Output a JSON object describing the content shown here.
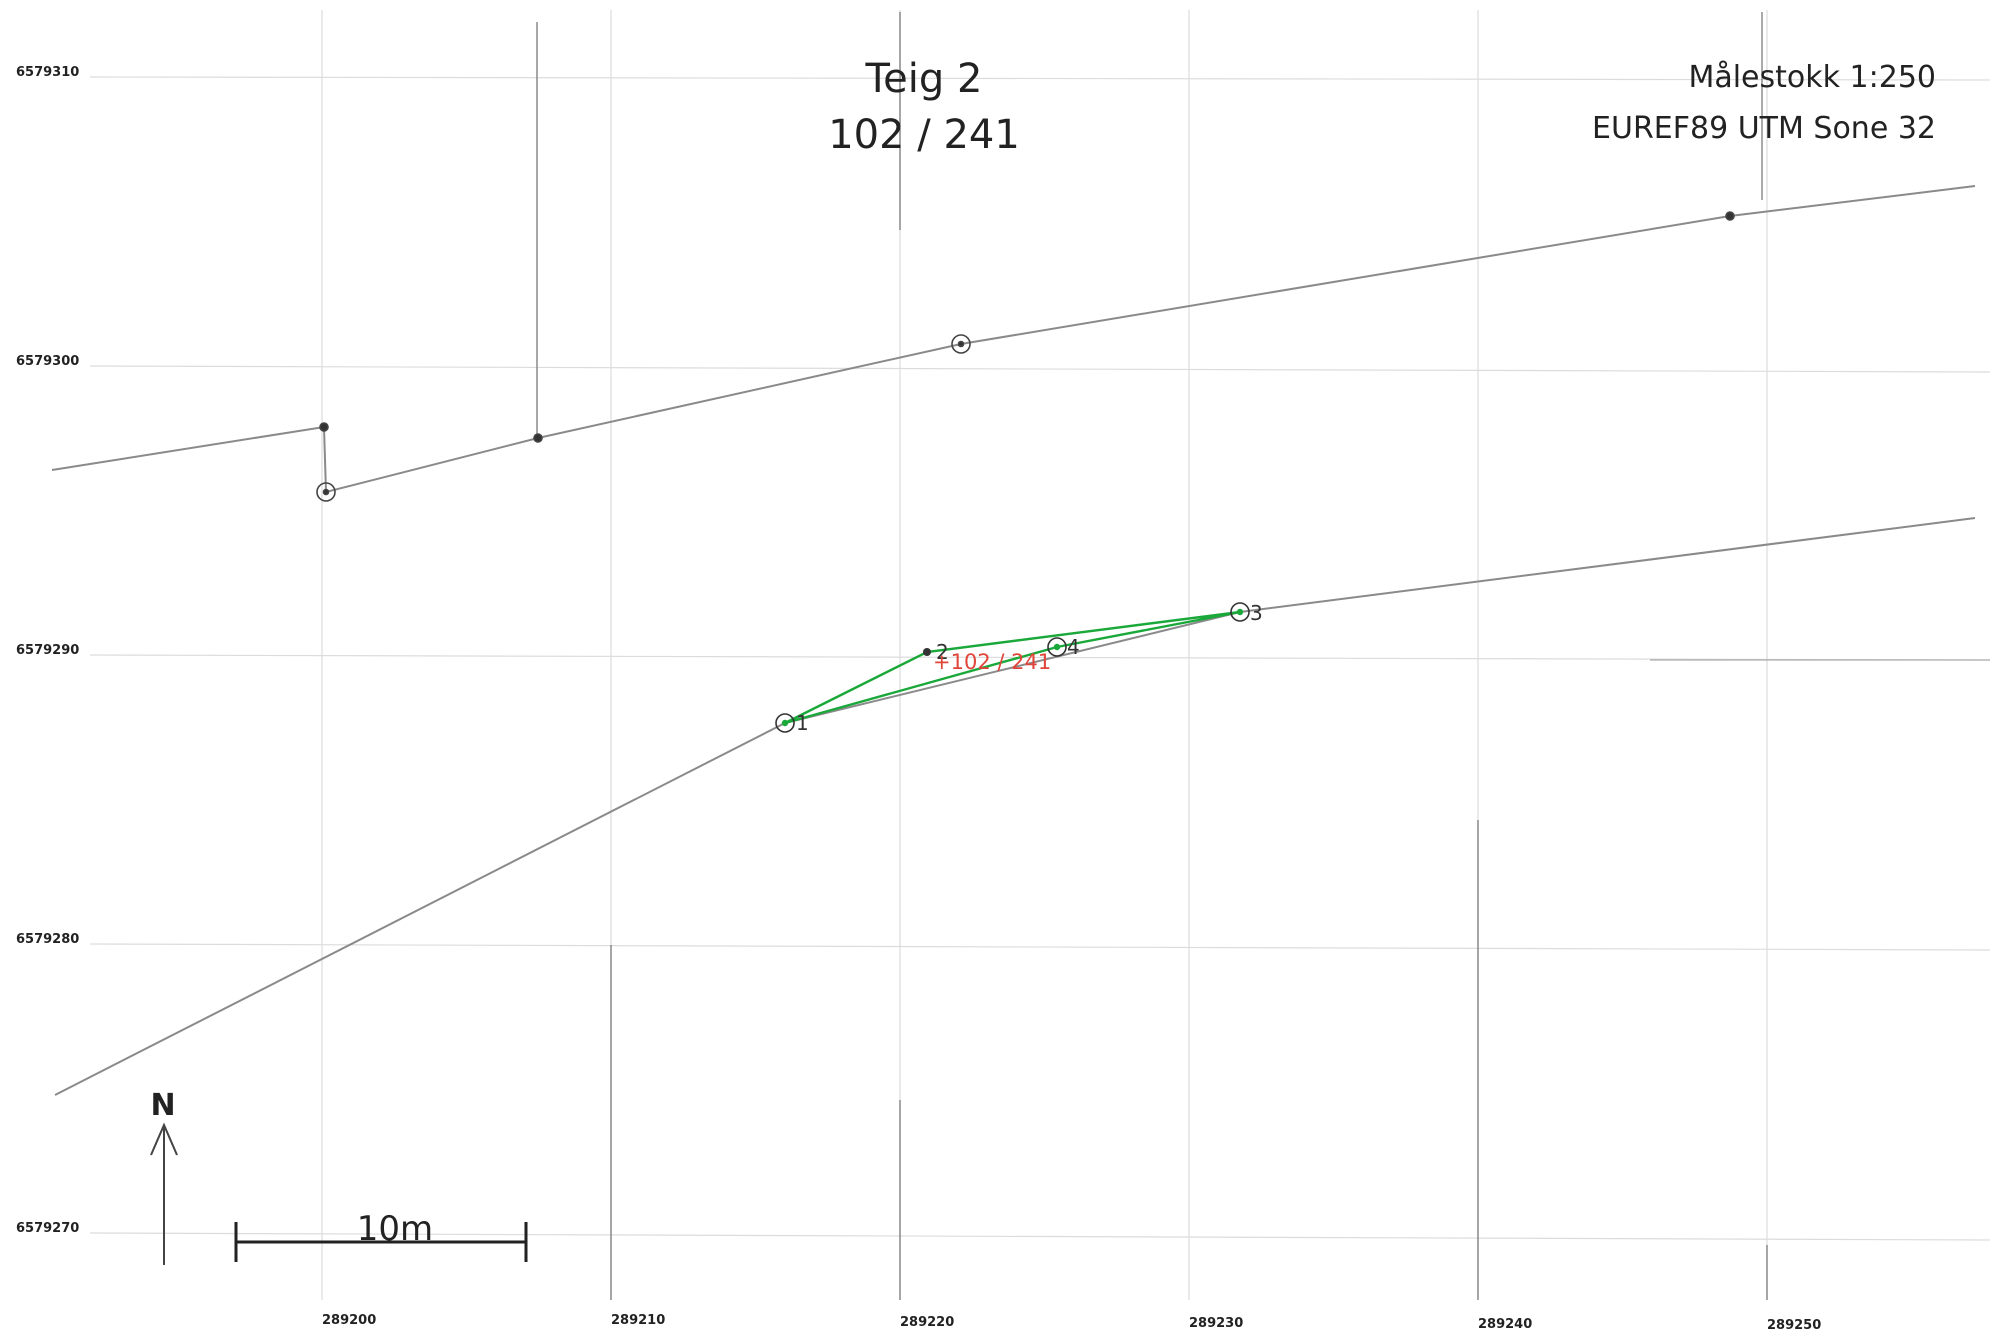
{
  "title": {
    "teig": "Teig 2",
    "parcel": "102 / 241"
  },
  "meta": {
    "scale": "Målestokk 1:250",
    "crs": "EUREF89 UTM Sone 32"
  },
  "grid": {
    "x_ticks": [
      "289200",
      "289210",
      "289220",
      "289230",
      "289240",
      "289250"
    ],
    "y_ticks": [
      "6579310",
      "6579300",
      "6579290",
      "6579280",
      "6579270"
    ]
  },
  "parcel_points": [
    "1",
    "2",
    "3",
    "4"
  ],
  "parcel_label": "+102 / 241",
  "north_label": "N",
  "scalebar_label": "10m",
  "colors": {
    "boundary": "#8a8a8a",
    "parcel": "#1aa83a",
    "label": "#e0453a",
    "grid": "#d6d6d6"
  }
}
